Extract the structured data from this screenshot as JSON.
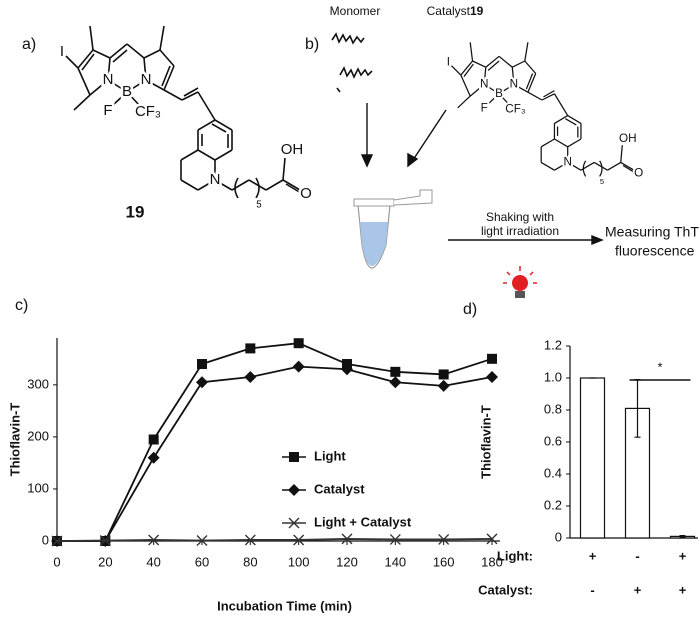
{
  "scheme": {
    "panel_a": "a)",
    "panel_b": "b)",
    "compound": "19",
    "atoms": [
      "I",
      "N",
      "N",
      "B",
      "F",
      "CF₃",
      "N",
      "OH",
      "O",
      "5"
    ],
    "monomer": "Monomer",
    "catalyst": "Catalyst",
    "catalyst_number": "19",
    "step": [
      "Shaking with",
      "light irradiation"
    ],
    "result": [
      "Measuring ThT",
      "fluorescence"
    ]
  },
  "chart_data": [
    {
      "type": "line",
      "panel": "c)",
      "x_label": "Incubation Time (min)",
      "y_label": "Thioflavin-T",
      "x": [
        0,
        20,
        40,
        60,
        80,
        100,
        120,
        140,
        160,
        180
      ],
      "xlim": [
        0,
        180
      ],
      "xticks": [
        0,
        20,
        40,
        60,
        80,
        100,
        120,
        140,
        160,
        180
      ],
      "ylim": [
        0,
        390
      ],
      "yticks": [
        0,
        100,
        200,
        300
      ],
      "legend": "right",
      "series": [
        {
          "name": "Light",
          "color": "#111111",
          "marker": "square",
          "values": [
            0,
            0,
            195,
            340,
            370,
            380,
            340,
            325,
            320,
            350
          ]
        },
        {
          "name": "Catalyst",
          "color": "#111111",
          "marker": "diamond",
          "values": [
            0,
            0,
            160,
            305,
            315,
            335,
            330,
            305,
            298,
            315
          ]
        },
        {
          "name": "Light + Catalyst",
          "color": "#333333",
          "marker": "x",
          "values": [
            0,
            1,
            2,
            1,
            2,
            2,
            4,
            3,
            3,
            4
          ]
        }
      ]
    },
    {
      "type": "bar",
      "panel": "d)",
      "y_label": "Thioflavin-T",
      "values": [
        1,
        0.81,
        0.01
      ],
      "errors": [
        0,
        0.18,
        0.005
      ],
      "color": "#ffffff",
      "ylim": [
        0,
        1.2
      ],
      "yticks": [
        0,
        0.2,
        0.4,
        0.6,
        {
          "value": 0.8,
          "label": "0.8"
        },
        {
          "value": 1,
          "label": "1.0"
        },
        1.2
      ],
      "rows": [
        {
          "label": "Light:",
          "values": [
            "+",
            "-",
            "+"
          ]
        },
        {
          "label": "Catalyst:",
          "values": [
            "-",
            "+",
            "+"
          ]
        }
      ],
      "annotation": "*"
    }
  ]
}
